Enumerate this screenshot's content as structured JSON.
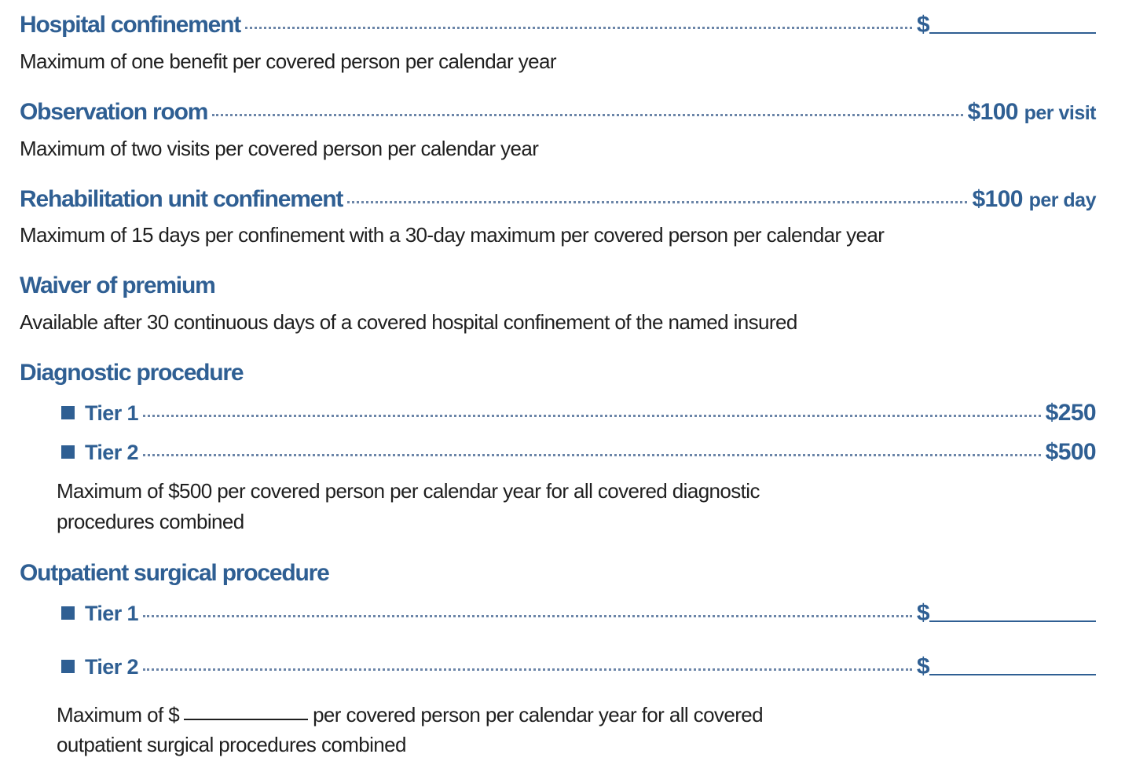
{
  "sections": {
    "hospital": {
      "title": "Hospital confinement",
      "amount_prefix": "$",
      "note": "Maximum of one benefit per covered person per calendar year"
    },
    "observation": {
      "title": "Observation room",
      "amount": "$100",
      "amount_unit": "per visit",
      "note": "Maximum of two visits per covered person per calendar year"
    },
    "rehab": {
      "title": "Rehabilitation unit confinement",
      "amount": "$100",
      "amount_unit": "per day",
      "note": "Maximum of 15 days per confinement with a 30-day maximum per covered person per calendar year"
    },
    "waiver": {
      "title": "Waiver of premium",
      "note": "Available after 30 continuous days of a covered hospital confinement of the named insured"
    },
    "diagnostic": {
      "title": "Diagnostic procedure",
      "tiers": [
        {
          "label": "Tier 1",
          "amount": "$250"
        },
        {
          "label": "Tier 2",
          "amount": "$500"
        }
      ],
      "note_line1": "Maximum of $500 per covered person per calendar year for all covered diagnostic",
      "note_line2": "procedures combined"
    },
    "outpatient": {
      "title": "Outpatient surgical procedure",
      "tiers": [
        {
          "label": "Tier 1",
          "amount_prefix": "$"
        },
        {
          "label": "Tier 2",
          "amount_prefix": "$"
        }
      ],
      "note_line1_a": "Maximum of $",
      "note_line1_b": "per covered person per calendar year for all covered",
      "note_line2": "outpatient surgical procedures combined"
    }
  }
}
